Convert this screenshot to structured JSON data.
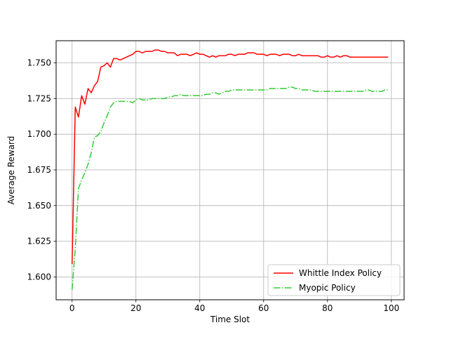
{
  "chart_data": {
    "type": "line",
    "title": "",
    "xlabel": "Time Slot",
    "ylabel": "Average Reward",
    "xlim": [
      -5,
      104
    ],
    "ylim": [
      1.584,
      1.7655
    ],
    "xticks": [
      0,
      20,
      40,
      60,
      80,
      100
    ],
    "yticks": [
      1.6,
      1.625,
      1.65,
      1.675,
      1.7,
      1.725,
      1.75
    ],
    "xtick_labels": [
      "0",
      "20",
      "40",
      "60",
      "80",
      "100"
    ],
    "ytick_labels": [
      "1.600",
      "1.625",
      "1.650",
      "1.675",
      "1.700",
      "1.725",
      "1.750"
    ],
    "grid": true,
    "legend_position": "lower-right",
    "series": [
      {
        "name": "Whittle Index Policy",
        "color": "#ff0000",
        "linestyle": "solid",
        "x": [
          0,
          1,
          2,
          3,
          4,
          5,
          6,
          7,
          8,
          9,
          10,
          11,
          12,
          13,
          14,
          15,
          16,
          17,
          18,
          19,
          20,
          21,
          22,
          23,
          24,
          25,
          26,
          27,
          28,
          29,
          30,
          31,
          32,
          33,
          34,
          35,
          36,
          37,
          38,
          39,
          40,
          41,
          42,
          43,
          44,
          45,
          46,
          47,
          48,
          49,
          50,
          51,
          52,
          53,
          54,
          55,
          56,
          57,
          58,
          59,
          60,
          61,
          62,
          63,
          64,
          65,
          66,
          67,
          68,
          69,
          70,
          71,
          72,
          73,
          74,
          75,
          76,
          77,
          78,
          79,
          80,
          81,
          82,
          83,
          84,
          85,
          86,
          87,
          88,
          89,
          90,
          91,
          92,
          93,
          94,
          95,
          96,
          97,
          98,
          99
        ],
        "y": [
          1.609,
          1.719,
          1.712,
          1.727,
          1.721,
          1.732,
          1.729,
          1.734,
          1.737,
          1.747,
          1.748,
          1.75,
          1.747,
          1.753,
          1.753,
          1.752,
          1.753,
          1.754,
          1.755,
          1.756,
          1.758,
          1.758,
          1.757,
          1.758,
          1.758,
          1.758,
          1.759,
          1.759,
          1.758,
          1.758,
          1.757,
          1.757,
          1.757,
          1.755,
          1.756,
          1.756,
          1.756,
          1.755,
          1.756,
          1.757,
          1.756,
          1.756,
          1.755,
          1.754,
          1.755,
          1.754,
          1.755,
          1.755,
          1.755,
          1.756,
          1.756,
          1.755,
          1.756,
          1.756,
          1.756,
          1.757,
          1.757,
          1.757,
          1.756,
          1.756,
          1.756,
          1.755,
          1.756,
          1.756,
          1.756,
          1.755,
          1.756,
          1.756,
          1.756,
          1.755,
          1.755,
          1.756,
          1.755,
          1.755,
          1.755,
          1.755,
          1.755,
          1.755,
          1.754,
          1.754,
          1.755,
          1.754,
          1.754,
          1.755,
          1.754,
          1.755,
          1.755,
          1.754,
          1.754,
          1.754,
          1.754,
          1.754,
          1.754,
          1.754,
          1.754,
          1.754,
          1.754,
          1.754,
          1.754,
          1.754
        ]
      },
      {
        "name": "Myopic Policy",
        "color": "#32cd32",
        "linestyle": "dashdot",
        "x": [
          0,
          1,
          2,
          3,
          4,
          5,
          6,
          7,
          8,
          9,
          10,
          11,
          12,
          13,
          14,
          15,
          16,
          17,
          18,
          19,
          20,
          21,
          22,
          23,
          24,
          25,
          26,
          27,
          28,
          29,
          30,
          31,
          32,
          33,
          34,
          35,
          36,
          37,
          38,
          39,
          40,
          41,
          42,
          43,
          44,
          45,
          46,
          47,
          48,
          49,
          50,
          51,
          52,
          53,
          54,
          55,
          56,
          57,
          58,
          59,
          60,
          61,
          62,
          63,
          64,
          65,
          66,
          67,
          68,
          69,
          70,
          71,
          72,
          73,
          74,
          75,
          76,
          77,
          78,
          79,
          80,
          81,
          82,
          83,
          84,
          85,
          86,
          87,
          88,
          89,
          90,
          91,
          92,
          93,
          94,
          95,
          96,
          97,
          98,
          99
        ],
        "y": [
          1.591,
          1.62,
          1.662,
          1.668,
          1.673,
          1.679,
          1.687,
          1.698,
          1.699,
          1.702,
          1.708,
          1.713,
          1.719,
          1.722,
          1.723,
          1.723,
          1.723,
          1.723,
          1.723,
          1.722,
          1.724,
          1.725,
          1.724,
          1.724,
          1.724,
          1.725,
          1.725,
          1.725,
          1.725,
          1.725,
          1.726,
          1.726,
          1.727,
          1.727,
          1.728,
          1.727,
          1.727,
          1.727,
          1.727,
          1.727,
          1.727,
          1.727,
          1.728,
          1.728,
          1.729,
          1.729,
          1.728,
          1.729,
          1.73,
          1.73,
          1.731,
          1.731,
          1.731,
          1.731,
          1.731,
          1.731,
          1.731,
          1.731,
          1.731,
          1.731,
          1.731,
          1.731,
          1.732,
          1.732,
          1.732,
          1.732,
          1.732,
          1.732,
          1.733,
          1.733,
          1.732,
          1.732,
          1.731,
          1.731,
          1.731,
          1.731,
          1.73,
          1.73,
          1.73,
          1.73,
          1.73,
          1.73,
          1.73,
          1.73,
          1.73,
          1.73,
          1.73,
          1.73,
          1.73,
          1.73,
          1.73,
          1.73,
          1.731,
          1.731,
          1.73,
          1.73,
          1.73,
          1.73,
          1.731,
          1.731
        ]
      }
    ]
  }
}
